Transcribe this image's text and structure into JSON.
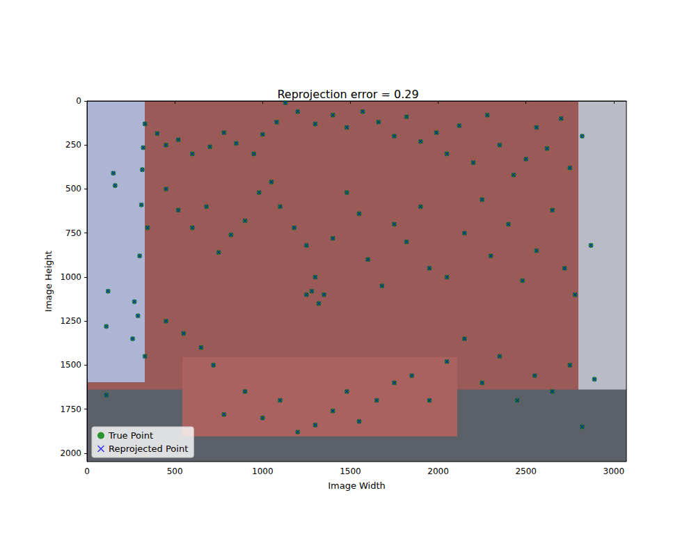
{
  "chart_data": {
    "type": "scatter",
    "title": "Reprojection error = 0.29",
    "x_label": "Image Width",
    "y_label": "Image Height",
    "xlim": [
      0,
      3072
    ],
    "ylim": [
      2048,
      0
    ],
    "xticks": [
      0,
      500,
      1000,
      1500,
      2000,
      2500,
      3000
    ],
    "yticks": [
      0,
      250,
      500,
      750,
      1000,
      1250,
      1500,
      1750,
      2000
    ],
    "grid": false,
    "legend": "lower left",
    "series": [
      {
        "name": "True Point",
        "color": "green",
        "marker": "o",
        "x": [
          330,
          320,
          315,
          310,
          345,
          300,
          270,
          290,
          260,
          330,
          110,
          150,
          160,
          120,
          110,
          400,
          450,
          520,
          600,
          700,
          780,
          850,
          950,
          1000,
          1080,
          1130,
          1200,
          1300,
          1400,
          1480,
          1570,
          1660,
          1750,
          1820,
          1900,
          1990,
          2050,
          2120,
          2200,
          2280,
          2350,
          2430,
          2500,
          2560,
          2620,
          2700,
          2750,
          2820,
          450,
          520,
          600,
          680,
          750,
          820,
          900,
          980,
          1050,
          1100,
          1180,
          1250,
          1300,
          1350,
          1400,
          1480,
          1550,
          1600,
          1680,
          1750,
          1820,
          1900,
          1950,
          2050,
          2150,
          2250,
          2300,
          2400,
          2480,
          2560,
          2650,
          2720,
          2780,
          2870,
          450,
          550,
          650,
          720,
          780,
          900,
          1000,
          1100,
          1200,
          1300,
          1400,
          1480,
          1550,
          1650,
          1750,
          1850,
          1950,
          2050,
          2150,
          2250,
          2350,
          2450,
          2550,
          2650,
          2750,
          2820,
          2890,
          1250,
          1320,
          1280
        ],
        "values": [
          130,
          265,
          390,
          590,
          720,
          880,
          1140,
          1220,
          1350,
          1450,
          1670,
          410,
          480,
          1080,
          1280,
          185,
          250,
          220,
          300,
          260,
          180,
          240,
          300,
          190,
          120,
          10,
          60,
          130,
          80,
          150,
          60,
          120,
          200,
          90,
          230,
          180,
          300,
          140,
          350,
          80,
          250,
          420,
          330,
          150,
          270,
          100,
          380,
          200,
          500,
          620,
          720,
          600,
          860,
          760,
          680,
          520,
          460,
          600,
          720,
          820,
          1000,
          1100,
          780,
          520,
          640,
          900,
          1050,
          700,
          800,
          600,
          950,
          1000,
          750,
          560,
          880,
          700,
          1020,
          850,
          620,
          950,
          1100,
          820,
          1250,
          1320,
          1400,
          1500,
          1780,
          1650,
          1800,
          1700,
          1880,
          1840,
          1760,
          1650,
          1820,
          1700,
          1600,
          1560,
          1700,
          1480,
          1350,
          1600,
          1450,
          1700,
          1560,
          1650,
          1500,
          1850,
          1580,
          1100,
          1150,
          1080
        ]
      },
      {
        "name": "Reprojected Point",
        "color": "blue",
        "marker": "x",
        "x": [
          330,
          320,
          315,
          310,
          345,
          300,
          270,
          290,
          260,
          330,
          110,
          150,
          160,
          120,
          110,
          400,
          450,
          520,
          600,
          700,
          780,
          850,
          950,
          1000,
          1080,
          1130,
          1200,
          1300,
          1400,
          1480,
          1570,
          1660,
          1750,
          1820,
          1900,
          1990,
          2050,
          2120,
          2200,
          2280,
          2350,
          2430,
          2500,
          2560,
          2620,
          2700,
          2750,
          2820,
          450,
          520,
          600,
          680,
          750,
          820,
          900,
          980,
          1050,
          1100,
          1180,
          1250,
          1300,
          1350,
          1400,
          1480,
          1550,
          1600,
          1680,
          1750,
          1820,
          1900,
          1950,
          2050,
          2150,
          2250,
          2300,
          2400,
          2480,
          2560,
          2650,
          2720,
          2780,
          2870,
          450,
          550,
          650,
          720,
          780,
          900,
          1000,
          1100,
          1200,
          1300,
          1400,
          1480,
          1550,
          1650,
          1750,
          1850,
          1950,
          2050,
          2150,
          2250,
          2350,
          2450,
          2550,
          2650,
          2750,
          2820,
          2890,
          1250,
          1320,
          1280
        ],
        "values": [
          130,
          265,
          390,
          590,
          720,
          880,
          1140,
          1220,
          1350,
          1450,
          1670,
          410,
          480,
          1080,
          1280,
          185,
          250,
          220,
          300,
          260,
          180,
          240,
          300,
          190,
          120,
          10,
          60,
          130,
          80,
          150,
          60,
          120,
          200,
          90,
          230,
          180,
          300,
          140,
          350,
          80,
          250,
          420,
          330,
          150,
          270,
          100,
          380,
          200,
          500,
          620,
          720,
          600,
          860,
          760,
          680,
          520,
          460,
          600,
          720,
          820,
          1000,
          1100,
          780,
          520,
          640,
          900,
          1050,
          700,
          800,
          600,
          950,
          1000,
          750,
          560,
          880,
          700,
          1020,
          850,
          620,
          950,
          1100,
          820,
          1250,
          1320,
          1400,
          1500,
          1780,
          1650,
          1800,
          1700,
          1880,
          1840,
          1760,
          1650,
          1820,
          1700,
          1600,
          1560,
          1700,
          1480,
          1350,
          1600,
          1450,
          1700,
          1560,
          1650,
          1500,
          1850,
          1580,
          1100,
          1150,
          1080
        ]
      }
    ]
  }
}
